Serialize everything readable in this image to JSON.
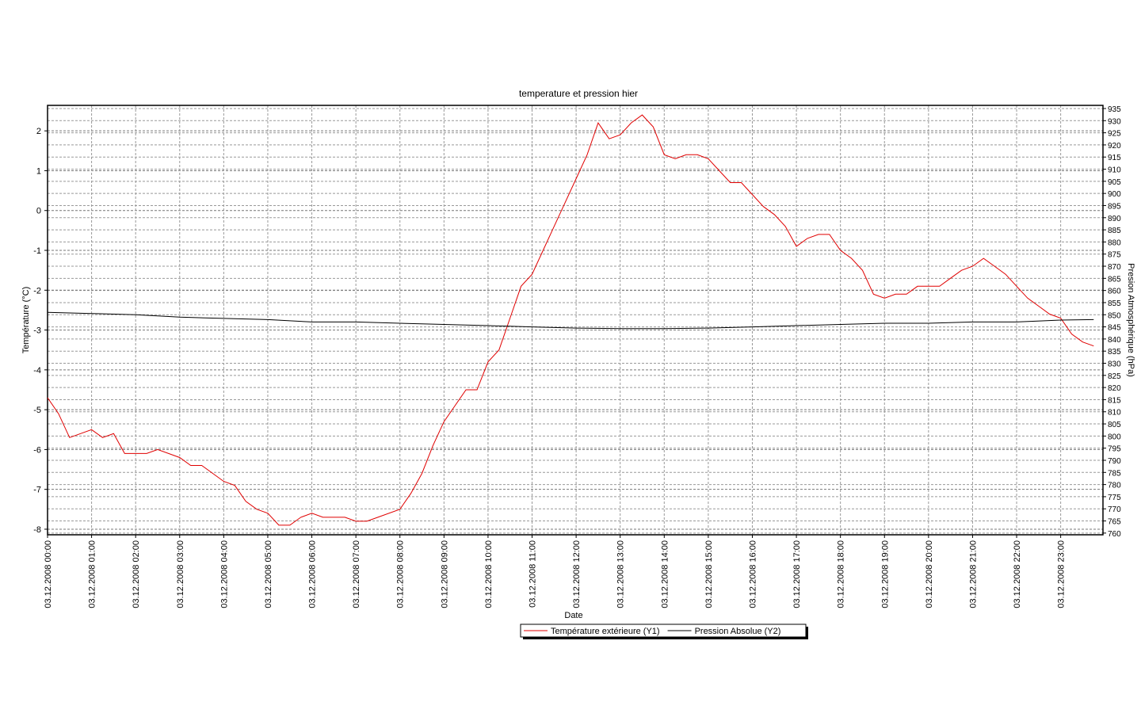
{
  "chart_data": {
    "type": "line",
    "title": "temperature et pression hier",
    "x_label": "Date",
    "y_label": "Température (°C)",
    "y2_label": "Presion Atmosphérique (hPa)",
    "xlim": [
      0,
      23.96
    ],
    "xticks": [
      {
        "value": 0,
        "label": "03.12.2008 00:00"
      },
      {
        "value": 1,
        "label": "03.12.2008 01:00"
      },
      {
        "value": 2,
        "label": "03.12.2008 02:00"
      },
      {
        "value": 3,
        "label": "03.12.2008 03:00"
      },
      {
        "value": 4,
        "label": "03.12.2008 04:00"
      },
      {
        "value": 5,
        "label": "03.12.2008 05:00"
      },
      {
        "value": 6,
        "label": "03.12.2008 06:00"
      },
      {
        "value": 7,
        "label": "03.12.2008 07:00"
      },
      {
        "value": 8,
        "label": "03.12.2008 08:00"
      },
      {
        "value": 9,
        "label": "03.12.2008 09:00"
      },
      {
        "value": 10,
        "label": "03.12.2008 10:00"
      },
      {
        "value": 11,
        "label": "03.12.2008 11:00"
      },
      {
        "value": 12,
        "label": "03.12.2008 12:00"
      },
      {
        "value": 13,
        "label": "03.12.2008 13:00"
      },
      {
        "value": 14,
        "label": "03.12.2008 14:00"
      },
      {
        "value": 15,
        "label": "03.12.2008 15:00"
      },
      {
        "value": 16,
        "label": "03.12.2008 16:00"
      },
      {
        "value": 17,
        "label": "03.12.2008 17:00"
      },
      {
        "value": 18,
        "label": "03.12.2008 18:00"
      },
      {
        "value": 19,
        "label": "03.12.2008 19:00"
      },
      {
        "value": 20,
        "label": "03.12.2008 20:00"
      },
      {
        "value": 21,
        "label": "03.12.2008 21:00"
      },
      {
        "value": 22,
        "label": "03.12.2008 22:00"
      },
      {
        "value": 23,
        "label": "03.12.2008 23:00"
      }
    ],
    "ylim": [
      -8.14,
      2.64
    ],
    "yticks": [
      -8,
      -7,
      -6,
      -5,
      -4,
      -3,
      -2,
      -1,
      0,
      1,
      2
    ],
    "y2lim": [
      759.3,
      936.3
    ],
    "y2ticks": [
      760,
      765,
      770,
      775,
      780,
      785,
      790,
      795,
      800,
      805,
      810,
      815,
      820,
      825,
      830,
      835,
      840,
      845,
      850,
      855,
      860,
      865,
      870,
      875,
      880,
      885,
      890,
      895,
      900,
      905,
      910,
      915,
      920,
      925,
      930,
      935
    ],
    "grid": true,
    "legend": "bottom",
    "series": [
      {
        "name": "Température extérieure (Y1)",
        "color": "#e00000",
        "x": [
          0,
          0.25,
          0.5,
          1.0,
          1.25,
          1.5,
          1.75,
          2.25,
          2.5,
          3.0,
          3.25,
          3.5,
          4.0,
          4.25,
          4.5,
          4.75,
          5.0,
          5.25,
          5.5,
          5.75,
          6.0,
          6.25,
          6.75,
          7.0,
          7.25,
          7.5,
          8.0,
          8.25,
          8.5,
          8.75,
          9.0,
          9.25,
          9.5,
          9.75,
          10.0,
          10.25,
          10.5,
          10.75,
          11.0,
          11.25,
          11.5,
          11.75,
          12.0,
          12.25,
          12.5,
          12.75,
          13.0,
          13.25,
          13.5,
          13.75,
          14.0,
          14.25,
          14.5,
          14.75,
          15.0,
          15.25,
          15.5,
          15.75,
          16.0,
          16.25,
          16.5,
          16.75,
          17.0,
          17.25,
          17.5,
          17.75,
          18.0,
          18.25,
          18.5,
          18.75,
          19.0,
          19.25,
          19.5,
          19.75,
          20.25,
          20.5,
          20.75,
          21.0,
          21.25,
          21.5,
          21.75,
          22.0,
          22.25,
          22.5,
          22.75,
          23.0,
          23.25,
          23.5,
          23.75
        ],
        "values": [
          -4.7,
          -5.1,
          -5.7,
          -5.5,
          -5.7,
          -5.6,
          -6.1,
          -6.1,
          -6.0,
          -6.2,
          -6.4,
          -6.4,
          -6.8,
          -6.9,
          -7.3,
          -7.5,
          -7.6,
          -7.9,
          -7.9,
          -7.7,
          -7.6,
          -7.7,
          -7.7,
          -7.8,
          -7.8,
          -7.7,
          -7.5,
          -7.1,
          -6.6,
          -5.9,
          -5.3,
          -4.9,
          -4.5,
          -4.5,
          -3.8,
          -3.5,
          -2.7,
          -1.9,
          -1.6,
          -1.0,
          -0.4,
          0.2,
          0.8,
          1.4,
          2.2,
          1.8,
          1.9,
          2.2,
          2.4,
          2.1,
          1.4,
          1.3,
          1.4,
          1.4,
          1.3,
          1.0,
          0.7,
          0.7,
          0.4,
          0.1,
          -0.1,
          -0.4,
          -0.9,
          -0.7,
          -0.6,
          -0.6,
          -1.0,
          -1.2,
          -1.5,
          -2.1,
          -2.2,
          -2.1,
          -2.1,
          -1.9,
          -1.9,
          -1.7,
          -1.5,
          -1.4,
          -1.2,
          -1.4,
          -1.6,
          -1.9,
          -2.2,
          -2.4,
          -2.6,
          -2.7,
          -3.1,
          -3.3,
          -3.4
        ]
      },
      {
        "name": "Pression Absolue (Y2)",
        "color": "#000000",
        "axis": "y2",
        "x": [
          0,
          1,
          2,
          3,
          4,
          5,
          6,
          7,
          8,
          9,
          10,
          11,
          12,
          13,
          14,
          15,
          16,
          17,
          18,
          19,
          20,
          21,
          22,
          23,
          23.75
        ],
        "values": [
          851,
          850.5,
          850,
          849,
          848.5,
          848,
          847,
          847,
          846.5,
          846,
          845.5,
          845,
          844.5,
          844.3,
          844.3,
          844.5,
          845,
          845.5,
          846,
          846.5,
          846.5,
          847,
          847,
          847.8,
          848
        ]
      }
    ]
  }
}
